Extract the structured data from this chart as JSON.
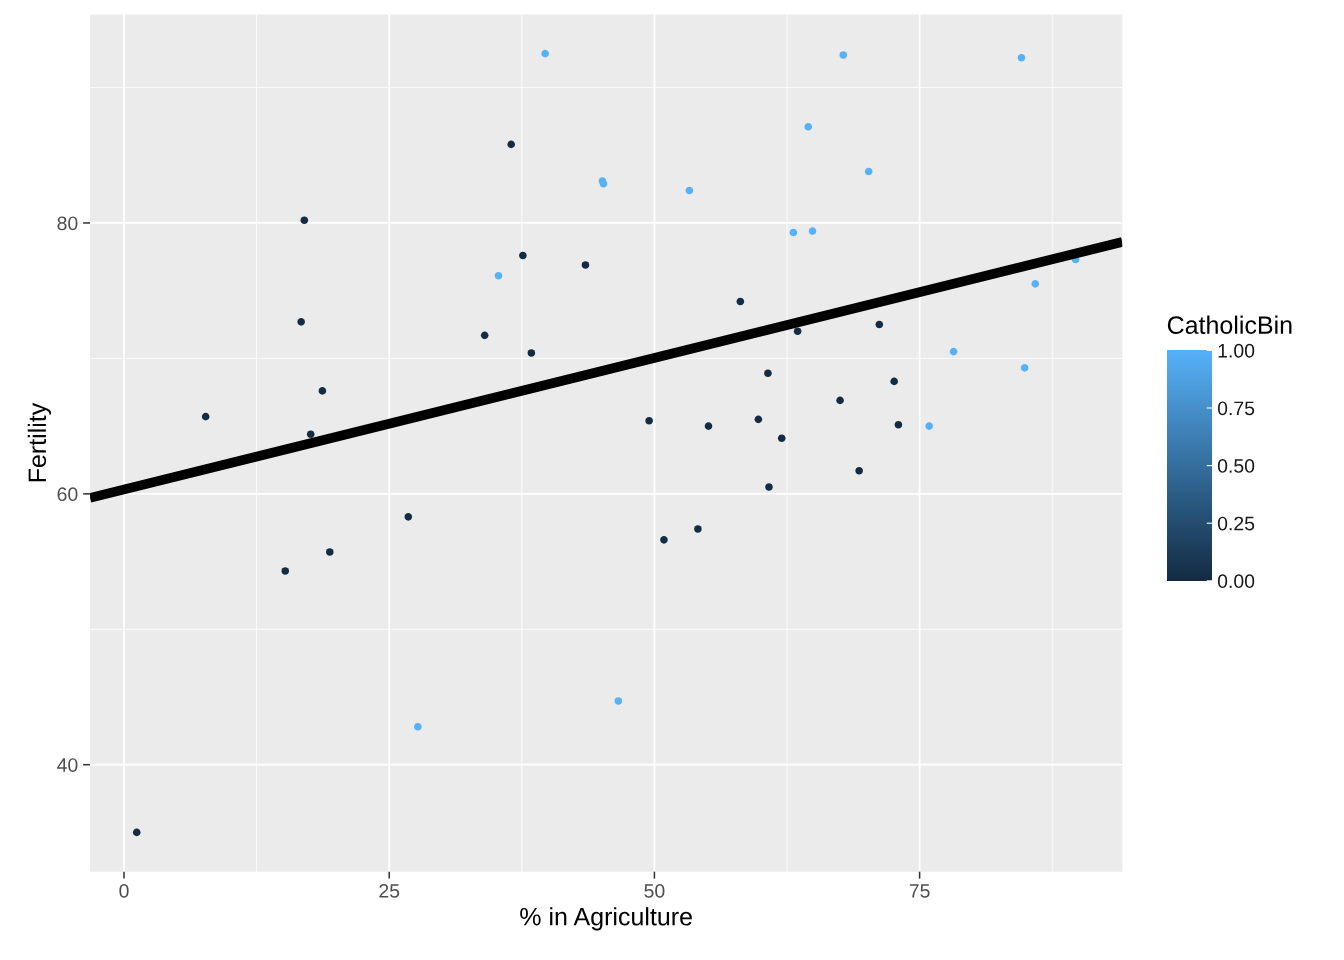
{
  "chart_data": {
    "type": "scatter",
    "xlabel": "% in Agriculture",
    "ylabel": "Fertility",
    "clabel": "CatholicBin",
    "xlim": [
      -3.2,
      94.1
    ],
    "ylim": [
      32.1,
      95.4
    ],
    "xticks": [
      0,
      25,
      50,
      75
    ],
    "yticks": [
      40,
      60,
      80
    ],
    "clim": [
      0,
      1
    ],
    "cticks": [
      {
        "value": 0,
        "label": "0.00"
      },
      {
        "value": 0.25,
        "label": "0.25"
      },
      {
        "value": 0.5,
        "label": "0.50"
      },
      {
        "value": 0.75,
        "label": "0.75"
      },
      {
        "value": 1,
        "label": "1.00"
      }
    ],
    "grid": true,
    "series": [
      {
        "marker": "circle",
        "colors": [
          "#132b43",
          "#56b1f7",
          "#56b1f7",
          "#132b43",
          "#132b43",
          "#56b1f7",
          "#56b1f7",
          "#56b1f7",
          "#56b1f7",
          "#56b1f7",
          "#56b1f7",
          "#132b43",
          "#132b43",
          "#132b43",
          "#132b43",
          "#132b43",
          "#132b43",
          "#132b43",
          "#132b43",
          "#132b43",
          "#132b43",
          "#132b43",
          "#132b43",
          "#132b43",
          "#132b43",
          "#132b43",
          "#132b43",
          "#132b43",
          "#132b43",
          "#132b43",
          "#56b1f7",
          "#56b1f7",
          "#56b1f7",
          "#56b1f7",
          "#56b1f7",
          "#56b1f7",
          "#56b1f7",
          "#56b1f7",
          "#132b43",
          "#132b43",
          "#132b43",
          "#132b43",
          "#132b43",
          "#132b43",
          "#132b43",
          "#56b1f7",
          "#56b1f7"
        ],
        "x": [
          17.0,
          45.1,
          39.7,
          36.5,
          43.5,
          35.3,
          70.2,
          67.8,
          53.3,
          45.2,
          64.5,
          62.0,
          67.5,
          60.7,
          69.3,
          72.6,
          34.0,
          19.4,
          15.2,
          73.0,
          59.8,
          55.1,
          50.9,
          54.1,
          71.2,
          58.1,
          63.5,
          60.8,
          26.8,
          49.5,
          85.9,
          84.9,
          89.7,
          78.2,
          64.9,
          75.9,
          84.6,
          63.1,
          38.4,
          7.7,
          16.7,
          17.6,
          37.6,
          18.7,
          1.2,
          46.6,
          27.7
        ],
        "values": [
          80.2,
          83.1,
          92.5,
          85.8,
          76.9,
          76.1,
          83.8,
          92.4,
          82.4,
          82.9,
          87.1,
          64.1,
          66.9,
          68.9,
          61.7,
          68.3,
          71.7,
          55.7,
          54.3,
          65.1,
          65.5,
          65.0,
          56.6,
          57.4,
          72.5,
          74.2,
          72.0,
          60.5,
          58.3,
          65.4,
          75.5,
          69.3,
          77.3,
          70.5,
          79.4,
          65.0,
          92.2,
          79.3,
          70.4,
          65.7,
          72.7,
          64.4,
          77.6,
          67.6,
          35.0,
          44.7,
          42.8
        ],
        "cvalues": [
          0,
          1,
          1,
          0,
          0,
          1,
          1,
          1,
          1,
          1,
          1,
          0,
          0,
          0,
          0,
          0,
          0,
          0,
          0,
          0,
          0,
          0,
          0,
          0,
          0,
          0,
          0,
          0,
          0,
          0,
          1,
          1,
          1,
          1,
          1,
          1,
          1,
          1,
          0,
          0,
          0,
          0,
          0,
          0,
          0,
          1,
          1
        ]
      },
      {
        "type": "line",
        "marker": "none",
        "color": "#000000",
        "x": [
          -3.2,
          94.1
        ],
        "values": [
          59.7,
          78.6
        ]
      }
    ]
  }
}
